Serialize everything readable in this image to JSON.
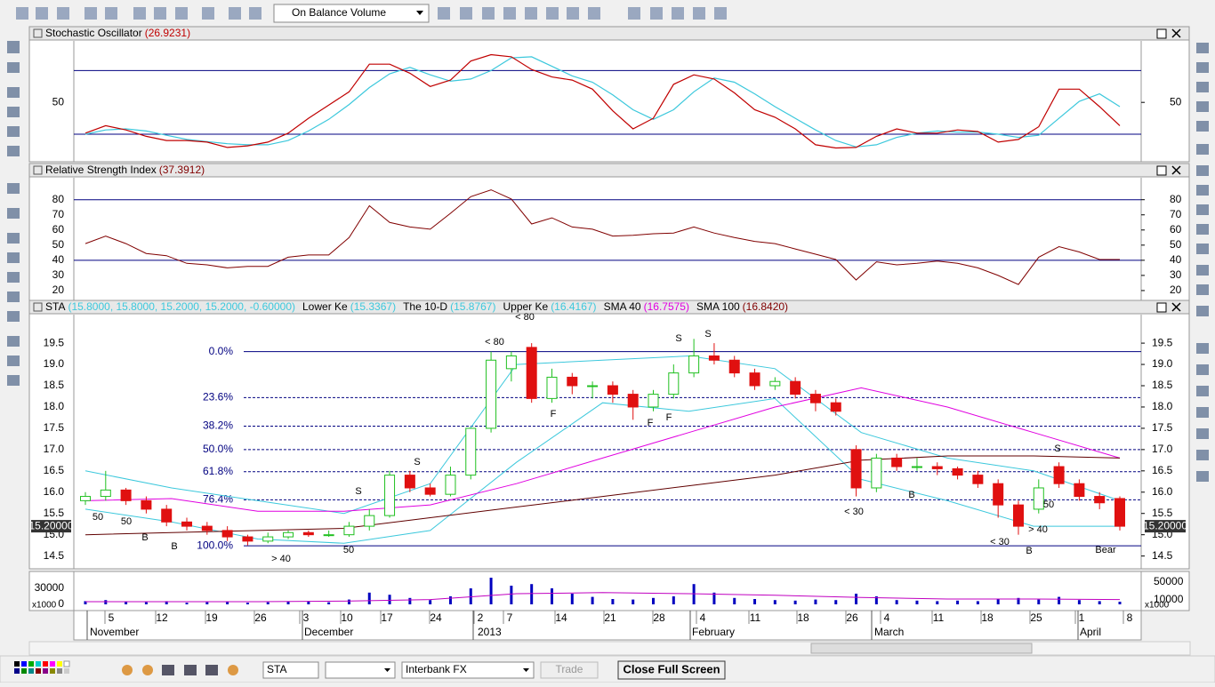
{
  "toolbar": {
    "indicator": "On Balance Volume"
  },
  "stochastic": {
    "title": "Stochastic Oscillator",
    "value": "(26.9231)",
    "ylim": [
      -6,
      108
    ],
    "yticks": [
      50
    ],
    "levels": [
      80,
      20
    ],
    "level_color": "#000080",
    "k_color": "#c00000",
    "d_color": "#3cc8dc",
    "k": [
      21,
      28,
      24,
      18,
      14,
      14,
      12.5,
      7.5,
      9,
      12.5,
      21,
      35,
      47.5,
      60,
      86,
      86,
      77.5,
      65,
      71,
      89,
      95,
      93,
      81,
      74,
      71,
      62.5,
      42,
      25,
      35,
      67,
      76,
      72,
      59,
      43,
      36,
      25,
      10,
      7,
      7.5,
      18,
      25,
      21,
      21,
      24,
      22.5,
      12.5,
      15,
      27,
      62.5,
      62.5,
      46,
      28
    ],
    "d": [
      20,
      24,
      25,
      23,
      19,
      15,
      13,
      11,
      10,
      10,
      14,
      23,
      34,
      48,
      64,
      77,
      83,
      76,
      70,
      72,
      80,
      92,
      93,
      84,
      75,
      69,
      57,
      43,
      34,
      43,
      60,
      73,
      69,
      58,
      46,
      35,
      24,
      14,
      8,
      10,
      17,
      21,
      23,
      22,
      22,
      20,
      17,
      19,
      35,
      51,
      58,
      46
    ]
  },
  "rsi": {
    "title": "Relative Strength Index",
    "value": "(37.3912)",
    "ylim": [
      13.5,
      94.5
    ],
    "yticks": [
      20,
      30,
      40,
      50,
      60,
      70,
      80
    ],
    "levels": [
      40,
      80
    ],
    "level_color": "#000080",
    "color": "#800000",
    "values": [
      51,
      56,
      51,
      44.5,
      43,
      38,
      37,
      35,
      36,
      36,
      42,
      43.5,
      43.5,
      55,
      76,
      65,
      62,
      60.5,
      71,
      82,
      86.5,
      80.5,
      64,
      68,
      62,
      60.5,
      56,
      56.5,
      57.5,
      58,
      62,
      58,
      55,
      52.5,
      51,
      47.5,
      44,
      40.5,
      27,
      39,
      37,
      38,
      39.5,
      38,
      35,
      30,
      24,
      42,
      49,
      45.5,
      40.5,
      40.5
    ]
  },
  "price": {
    "symbol": "STA",
    "ohlc": "(15.8000, 15.8000, 15.2000, 15.2000, -0.60000)",
    "indicators": [
      {
        "name": "Lower Ke",
        "value": "(15.3367)",
        "color": "#3cc8dc"
      },
      {
        "name": "The 10-D",
        "value": "(15.8767)",
        "color": "#3cc8dc"
      },
      {
        "name": "Upper Ke",
        "value": "(16.4167)",
        "color": "#3cc8dc"
      },
      {
        "name": "SMA 40",
        "value": "(16.7575)",
        "color": "#e000e0"
      },
      {
        "name": "SMA 100",
        "value": "(16.8420)",
        "color": "#800000"
      }
    ],
    "ylim": [
      14.2,
      20.17
    ],
    "yticks": [
      14.5,
      {
        "value": 15,
        "label": "15.0"
      },
      15.5,
      {
        "value": 16,
        "label": "16.0"
      },
      16.5,
      {
        "value": 17,
        "label": "17.0"
      },
      17.5,
      {
        "value": 18,
        "label": "18.0"
      },
      18.5,
      {
        "value": 19,
        "label": "19.0"
      },
      19.5
    ],
    "up_color": "#20c020",
    "down_color": "#e01010",
    "candles": [
      [
        15.8,
        16.0,
        15.7,
        15.9
      ],
      [
        15.9,
        16.5,
        15.8,
        16.05
      ],
      [
        16.05,
        16.1,
        15.7,
        15.8
      ],
      [
        15.8,
        15.9,
        15.5,
        15.6
      ],
      [
        15.6,
        15.7,
        15.2,
        15.3
      ],
      [
        15.3,
        15.4,
        15.1,
        15.2
      ],
      [
        15.2,
        15.3,
        15.0,
        15.1
      ],
      [
        15.1,
        15.2,
        14.85,
        14.95
      ],
      [
        14.95,
        15.0,
        14.75,
        14.85
      ],
      [
        14.85,
        15.05,
        14.8,
        14.95
      ],
      [
        14.95,
        15.1,
        14.9,
        15.05
      ],
      [
        15.05,
        15.1,
        14.95,
        15.0
      ],
      [
        15.0,
        15.1,
        14.95,
        15.0
      ],
      [
        15.0,
        15.3,
        14.95,
        15.2
      ],
      [
        15.2,
        15.6,
        15.1,
        15.45
      ],
      [
        15.45,
        16.5,
        15.4,
        16.4
      ],
      [
        16.4,
        16.5,
        16.0,
        16.1
      ],
      [
        16.1,
        16.2,
        15.9,
        15.95
      ],
      [
        15.95,
        16.6,
        15.9,
        16.4
      ],
      [
        16.4,
        17.5,
        16.3,
        17.5
      ],
      [
        17.5,
        19.3,
        17.4,
        19.1
      ],
      [
        18.9,
        19.3,
        18.6,
        19.2
      ],
      [
        19.4,
        19.5,
        18.1,
        18.2
      ],
      [
        18.2,
        18.9,
        18.1,
        18.7
      ],
      [
        18.7,
        18.8,
        18.3,
        18.5
      ],
      [
        18.5,
        18.6,
        18.2,
        18.5
      ],
      [
        18.5,
        18.6,
        18.1,
        18.3
      ],
      [
        18.3,
        18.4,
        17.7,
        18.0
      ],
      [
        18.0,
        18.4,
        17.9,
        18.3
      ],
      [
        18.3,
        19.0,
        18.2,
        18.8
      ],
      [
        18.8,
        19.6,
        18.7,
        19.2
      ],
      [
        19.2,
        19.5,
        19.0,
        19.1
      ],
      [
        19.1,
        19.2,
        18.7,
        18.8
      ],
      [
        18.8,
        18.9,
        18.4,
        18.5
      ],
      [
        18.5,
        18.7,
        18.4,
        18.6
      ],
      [
        18.6,
        18.7,
        18.2,
        18.3
      ],
      [
        18.3,
        18.4,
        17.9,
        18.1
      ],
      [
        18.1,
        18.2,
        17.8,
        17.9
      ],
      [
        17.0,
        17.1,
        15.9,
        16.1
      ],
      [
        16.1,
        16.9,
        16.0,
        16.8
      ],
      [
        16.8,
        16.9,
        16.5,
        16.6
      ],
      [
        16.6,
        16.8,
        16.5,
        16.6
      ],
      [
        16.6,
        16.7,
        16.4,
        16.55
      ],
      [
        16.55,
        16.6,
        16.3,
        16.4
      ],
      [
        16.4,
        16.5,
        16.1,
        16.2
      ],
      [
        16.2,
        16.3,
        15.4,
        15.7
      ],
      [
        15.7,
        15.8,
        15.0,
        15.2
      ],
      [
        15.6,
        16.3,
        15.5,
        16.1
      ],
      [
        16.6,
        16.7,
        16.1,
        16.2
      ],
      [
        16.2,
        16.3,
        15.8,
        15.9
      ],
      [
        15.9,
        16.0,
        15.6,
        15.75
      ],
      [
        15.85,
        15.9,
        15.1,
        15.2
      ]
    ],
    "lines": [
      {
        "color": "#3cc8dc",
        "values": [
          16.5,
          16.1,
          15.8,
          15.5,
          16.2,
          19.0,
          19.1,
          19.2,
          18.9,
          17.4,
          16.8,
          16.5,
          15.8
        ]
      },
      {
        "color": "#3cc8dc",
        "values": [
          15.6,
          15.3,
          14.9,
          14.8,
          15.1,
          16.7,
          18.1,
          17.9,
          18.2,
          16.3,
          15.8,
          15.2,
          15.2
        ]
      },
      {
        "color": "#e000e0",
        "values": [
          15.8,
          15.85,
          15.55,
          15.55,
          15.7,
          16.2,
          16.8,
          17.4,
          18.0,
          18.45,
          18.0,
          17.4,
          16.8
        ]
      },
      {
        "color": "#600000",
        "values": [
          15.0,
          15.05,
          15.1,
          15.15,
          15.4,
          15.65,
          15.9,
          16.15,
          16.4,
          16.75,
          16.85,
          16.85,
          16.8
        ]
      }
    ],
    "fib": [
      {
        "label": "0.0%",
        "value": 19.3
      },
      {
        "label": "23.6%",
        "value": 18.22
      },
      {
        "label": "38.2%",
        "value": 17.55
      },
      {
        "label": "50.0%",
        "value": 17.0
      },
      {
        "label": "61.8%",
        "value": 16.48
      },
      {
        "label": "76.4%",
        "value": 15.82
      },
      {
        "label": "100.0%",
        "value": 14.74
      }
    ],
    "fib_color": "#000080",
    "last": {
      "value": 15.2,
      "label": "15.20000"
    },
    "annotations": [
      "< 80",
      "< 80",
      "S",
      "S",
      "S",
      "S",
      "S",
      "B",
      "B",
      "B",
      "B",
      "50",
      "50",
      "50",
      "50",
      "> 40",
      "> 40",
      "< 30",
      "< 30",
      "F",
      "F",
      "F",
      "Bear"
    ]
  },
  "volume": {
    "ylim": [
      -10000,
      56667
    ],
    "y2lim": [
      -12000,
      68000
    ],
    "yticks": [
      30000,
      0
    ],
    "y2ticks": [
      50000,
      10000
    ],
    "unit": "x1000",
    "color": "#0000c0",
    "ma_color": "#c000c0",
    "values": [
      6000,
      8000,
      5000,
      4000,
      6000,
      3000,
      4000,
      5000,
      3000,
      4000,
      5000,
      6000,
      4000,
      9000,
      22000,
      18000,
      12000,
      8000,
      15000,
      30000,
      50000,
      35000,
      38000,
      30000,
      20000,
      14000,
      10000,
      9000,
      12000,
      15000,
      38000,
      22000,
      12000,
      10000,
      8000,
      7000,
      9000,
      8000,
      20000,
      15000,
      8000,
      7000,
      6000,
      7000,
      6000,
      10000,
      12000,
      9000,
      14000,
      8000,
      6000,
      5000
    ],
    "ma": [
      5000,
      5000,
      5000,
      6000,
      9000,
      20000,
      22000,
      20000,
      17000,
      13000,
      10000,
      10000,
      9000
    ]
  },
  "dates": {
    "days": [
      "5",
      "12",
      "19",
      "26",
      "3",
      "10",
      "17",
      "24",
      "2",
      "7",
      "14",
      "21",
      "28",
      "4",
      "11",
      "18",
      "26",
      "4",
      "11",
      "18",
      "25",
      "1",
      "8"
    ],
    "months": [
      "November",
      "December",
      "2013",
      "February",
      "March",
      "April"
    ]
  },
  "bottom": {
    "symbol": "STA",
    "broker": "Interbank FX",
    "trade": "Trade",
    "close": "Close Full Screen"
  }
}
